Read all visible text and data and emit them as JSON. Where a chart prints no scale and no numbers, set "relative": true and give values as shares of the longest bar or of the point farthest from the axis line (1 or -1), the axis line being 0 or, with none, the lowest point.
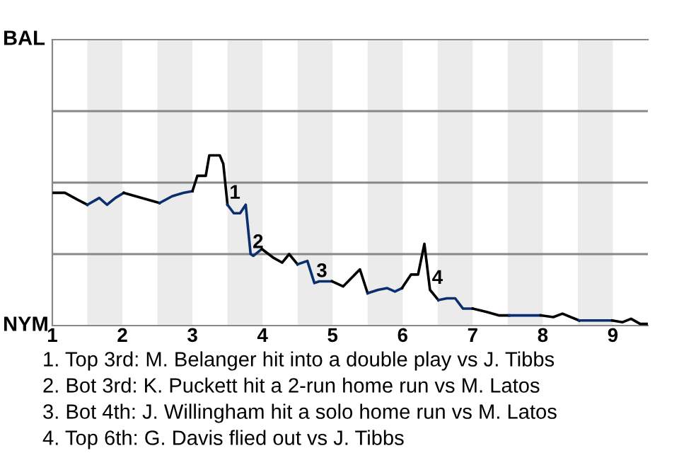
{
  "chart_data": {
    "type": "line",
    "relative": true,
    "xlim": [
      1,
      9.5
    ],
    "xticks": [
      1,
      2,
      3,
      4,
      5,
      6,
      7,
      8,
      9
    ],
    "ref_lines": [
      {
        "axis": "y",
        "value": 0.42,
        "color": "#888888"
      },
      {
        "axis": "y",
        "value": 0.84,
        "color": "#888888"
      },
      {
        "axis": "y",
        "value": 1.26,
        "color": "#888888"
      }
    ],
    "line_style": "solid",
    "marker": "none",
    "bands": [
      {
        "axis": "x",
        "from": 1.5,
        "to": 2,
        "color": "#ebebeb"
      },
      {
        "axis": "x",
        "from": 2.5,
        "to": 3,
        "color": "#ebebeb"
      },
      {
        "axis": "x",
        "from": 3.5,
        "to": 4,
        "color": "#ebebeb"
      },
      {
        "axis": "x",
        "from": 4.5,
        "to": 5,
        "color": "#ebebeb"
      },
      {
        "axis": "x",
        "from": 5.5,
        "to": 6,
        "color": "#ebebeb"
      },
      {
        "axis": "x",
        "from": 6.5,
        "to": 7,
        "color": "#ebebeb"
      },
      {
        "axis": "x",
        "from": 7.5,
        "to": 8,
        "color": "#ebebeb"
      },
      {
        "axis": "x",
        "from": 8.5,
        "to": 9,
        "color": "#ebebeb"
      }
    ],
    "series": [
      {
        "color": "#000000",
        "x": [
          1.02,
          1.18,
          1.36,
          1.5
        ],
        "values": [
          0.78,
          0.78,
          0.74,
          0.71
        ]
      },
      {
        "color": "#0a2f6e",
        "x": [
          1.5,
          1.67,
          1.78,
          1.9,
          2.02
        ],
        "values": [
          0.71,
          0.75,
          0.71,
          0.75,
          0.78
        ]
      },
      {
        "color": "#000000",
        "x": [
          2.02,
          2.53
        ],
        "values": [
          0.78,
          0.72
        ]
      },
      {
        "color": "#0a2f6e",
        "x": [
          2.53,
          2.71,
          2.87,
          3
        ],
        "values": [
          0.72,
          0.76,
          0.78,
          0.79
        ]
      },
      {
        "color": "#000000",
        "x": [
          3,
          3.07,
          3.19,
          3.24,
          3.39,
          3.44,
          3.5
        ],
        "values": [
          0.79,
          0.88,
          0.88,
          1,
          1,
          0.95,
          0.71
        ]
      },
      {
        "color": "#0a2f6e",
        "x": [
          3.5,
          3.59,
          3.68,
          3.76,
          3.83,
          3.87,
          3.99
        ],
        "values": [
          0.71,
          0.66,
          0.66,
          0.71,
          0.42,
          0.41,
          0.45
        ]
      },
      {
        "color": "#000000",
        "x": [
          3.99,
          4.15,
          4.28,
          4.38,
          4.5
        ],
        "values": [
          0.45,
          0.4,
          0.37,
          0.42,
          0.36
        ]
      },
      {
        "color": "#0a2f6e",
        "x": [
          4.5,
          4.64,
          4.74,
          4.81,
          4.99
        ],
        "values": [
          0.36,
          0.38,
          0.25,
          0.26,
          0.26
        ]
      },
      {
        "color": "#000000",
        "x": [
          4.99,
          5.15,
          5.39,
          5.5
        ],
        "values": [
          0.26,
          0.23,
          0.33,
          0.19
        ]
      },
      {
        "color": "#0a2f6e",
        "x": [
          5.5,
          5.65,
          5.78,
          5.89,
          5.99
        ],
        "values": [
          0.19,
          0.21,
          0.22,
          0.2,
          0.22
        ]
      },
      {
        "color": "#000000",
        "x": [
          5.99,
          6.12,
          6.22,
          6.31,
          6.39,
          6.51
        ],
        "values": [
          0.22,
          0.3,
          0.3,
          0.48,
          0.21,
          0.15
        ]
      },
      {
        "color": "#0a2f6e",
        "x": [
          6.51,
          6.63,
          6.75,
          6.86,
          7
        ],
        "values": [
          0.15,
          0.16,
          0.16,
          0.1,
          0.1
        ]
      },
      {
        "color": "#000000",
        "x": [
          7,
          7.2,
          7.37,
          7.52
        ],
        "values": [
          0.1,
          0.08,
          0.06,
          0.06
        ]
      },
      {
        "color": "#0a2f6e",
        "x": [
          7.52,
          7.67,
          7.97
        ],
        "values": [
          0.06,
          0.06,
          0.06
        ]
      },
      {
        "color": "#000000",
        "x": [
          7.97,
          8.15,
          8.28,
          8.52
        ],
        "values": [
          0.06,
          0.05,
          0.07,
          0.03
        ]
      },
      {
        "color": "#0a2f6e",
        "x": [
          8.52,
          8.99
        ],
        "values": [
          0.03,
          0.03
        ]
      },
      {
        "color": "#000000",
        "x": [
          8.99,
          9.14,
          9.26,
          9.39,
          9.5
        ],
        "values": [
          0.03,
          0.02,
          0.04,
          0.01,
          0.01
        ]
      }
    ],
    "annotations": [
      {
        "text": "1",
        "x": 3.5,
        "y": 0.71
      },
      {
        "text": "2",
        "x": 3.83,
        "y": 0.42
      },
      {
        "text": "3",
        "x": 4.74,
        "y": 0.25
      },
      {
        "text": "4",
        "x": 6.39,
        "y": 0.21
      },
      "BAL",
      "NYM",
      "1. Top 3rd: M. Belanger hit into a double play vs J. Tibbs",
      "2. Bot 3rd: K. Puckett hit a 2-run home run vs M. Latos",
      "3. Bot 4th: J. Willingham hit a solo home run vs M. Latos",
      "4. Top 6th: G. Davis flied out vs J. Tibbs"
    ]
  }
}
